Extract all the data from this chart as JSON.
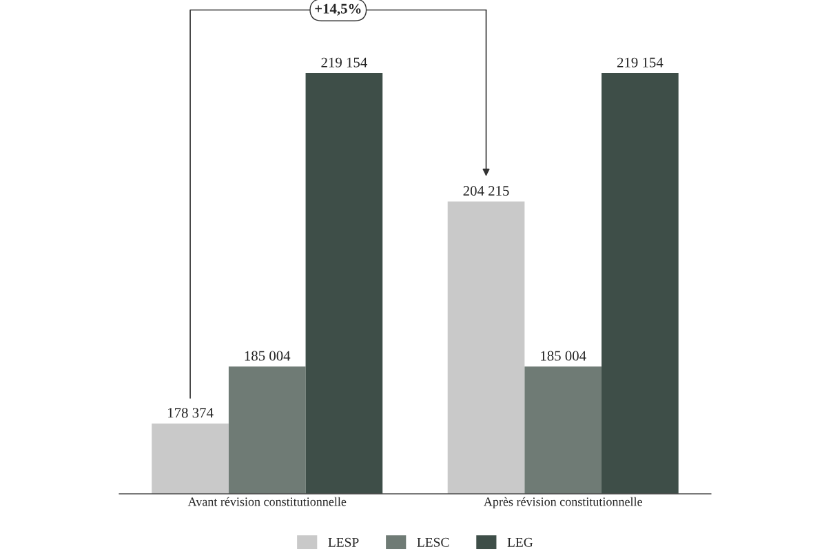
{
  "chart_data": {
    "type": "bar",
    "categories": [
      "Avant révision constitutionnelle",
      "Après révision constitutionnelle"
    ],
    "series": [
      {
        "name": "LESP",
        "color": "#c9c9c9",
        "values": [
          178374,
          204215
        ],
        "value_labels": [
          "178 374",
          "204 215"
        ]
      },
      {
        "name": "LESC",
        "color": "#6f7b75",
        "values": [
          185004,
          185004
        ],
        "value_labels": [
          "185 004",
          "185 004"
        ]
      },
      {
        "name": "LEG",
        "color": "#3e4e48",
        "values": [
          219154,
          219154
        ],
        "value_labels": [
          "219 154",
          "219 154"
        ]
      }
    ],
    "ylim": [
      170180,
      219154
    ],
    "tick_labels": "x",
    "grid": false,
    "legend": "bottom",
    "annotations": [
      "+14,5%"
    ]
  }
}
